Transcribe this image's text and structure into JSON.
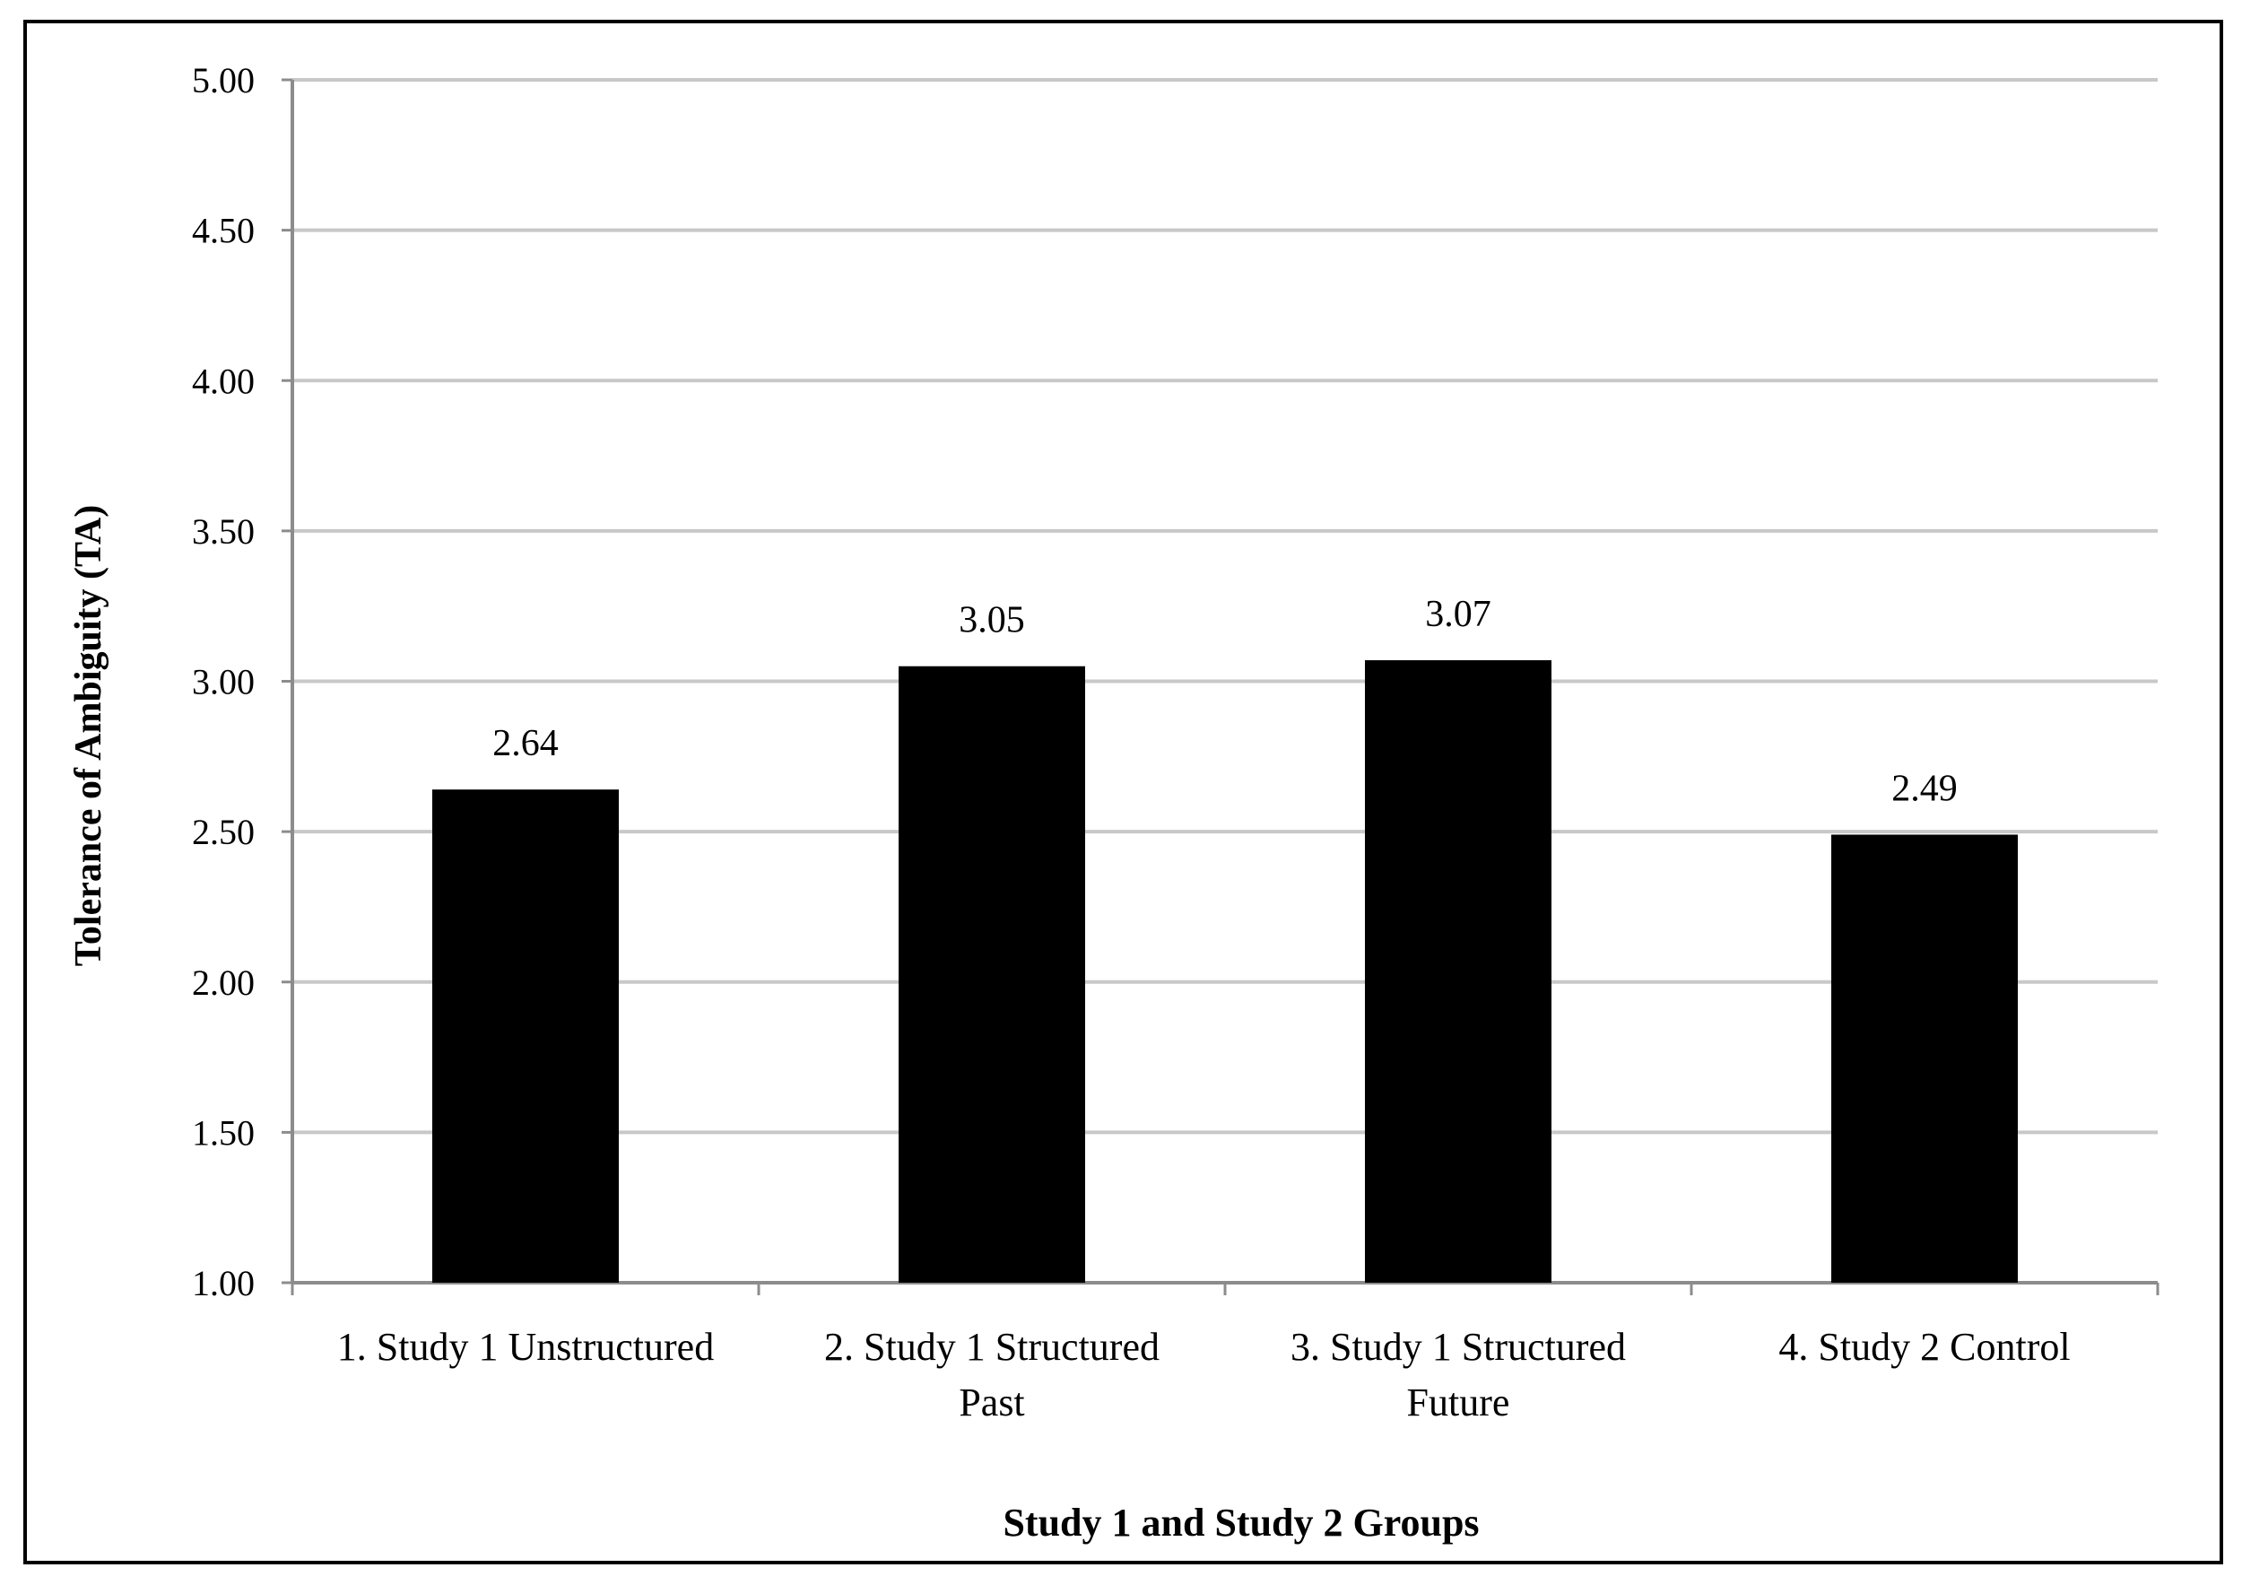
{
  "chart_data": {
    "type": "bar",
    "title": "",
    "xlabel": "Study 1 and Study 2 Groups",
    "ylabel": "Tolerance of Ambiguity (TA)",
    "categories": [
      [
        "1. Study 1 Unstructured"
      ],
      [
        "2. Study 1 Structured",
        "Past"
      ],
      [
        "3. Study 1 Structured",
        "Future"
      ],
      [
        "4. Study 2 Control"
      ]
    ],
    "values": [
      2.64,
      3.05,
      3.07,
      2.49
    ],
    "data_labels": [
      "2.64",
      "3.05",
      "3.07",
      "2.49"
    ],
    "ylim": [
      1.0,
      5.0
    ],
    "yticks": [
      1.0,
      1.5,
      2.0,
      2.5,
      3.0,
      3.5,
      4.0,
      4.5,
      5.0
    ],
    "ytick_labels": [
      "1.00",
      "1.50",
      "2.00",
      "2.50",
      "3.00",
      "3.50",
      "4.00",
      "4.50",
      "5.00"
    ],
    "grid": true,
    "legend": "none",
    "colors": {
      "bar": "#000000",
      "grid": "#c8c8c8",
      "axis": "#8c8c8c",
      "text": "#000000"
    }
  }
}
